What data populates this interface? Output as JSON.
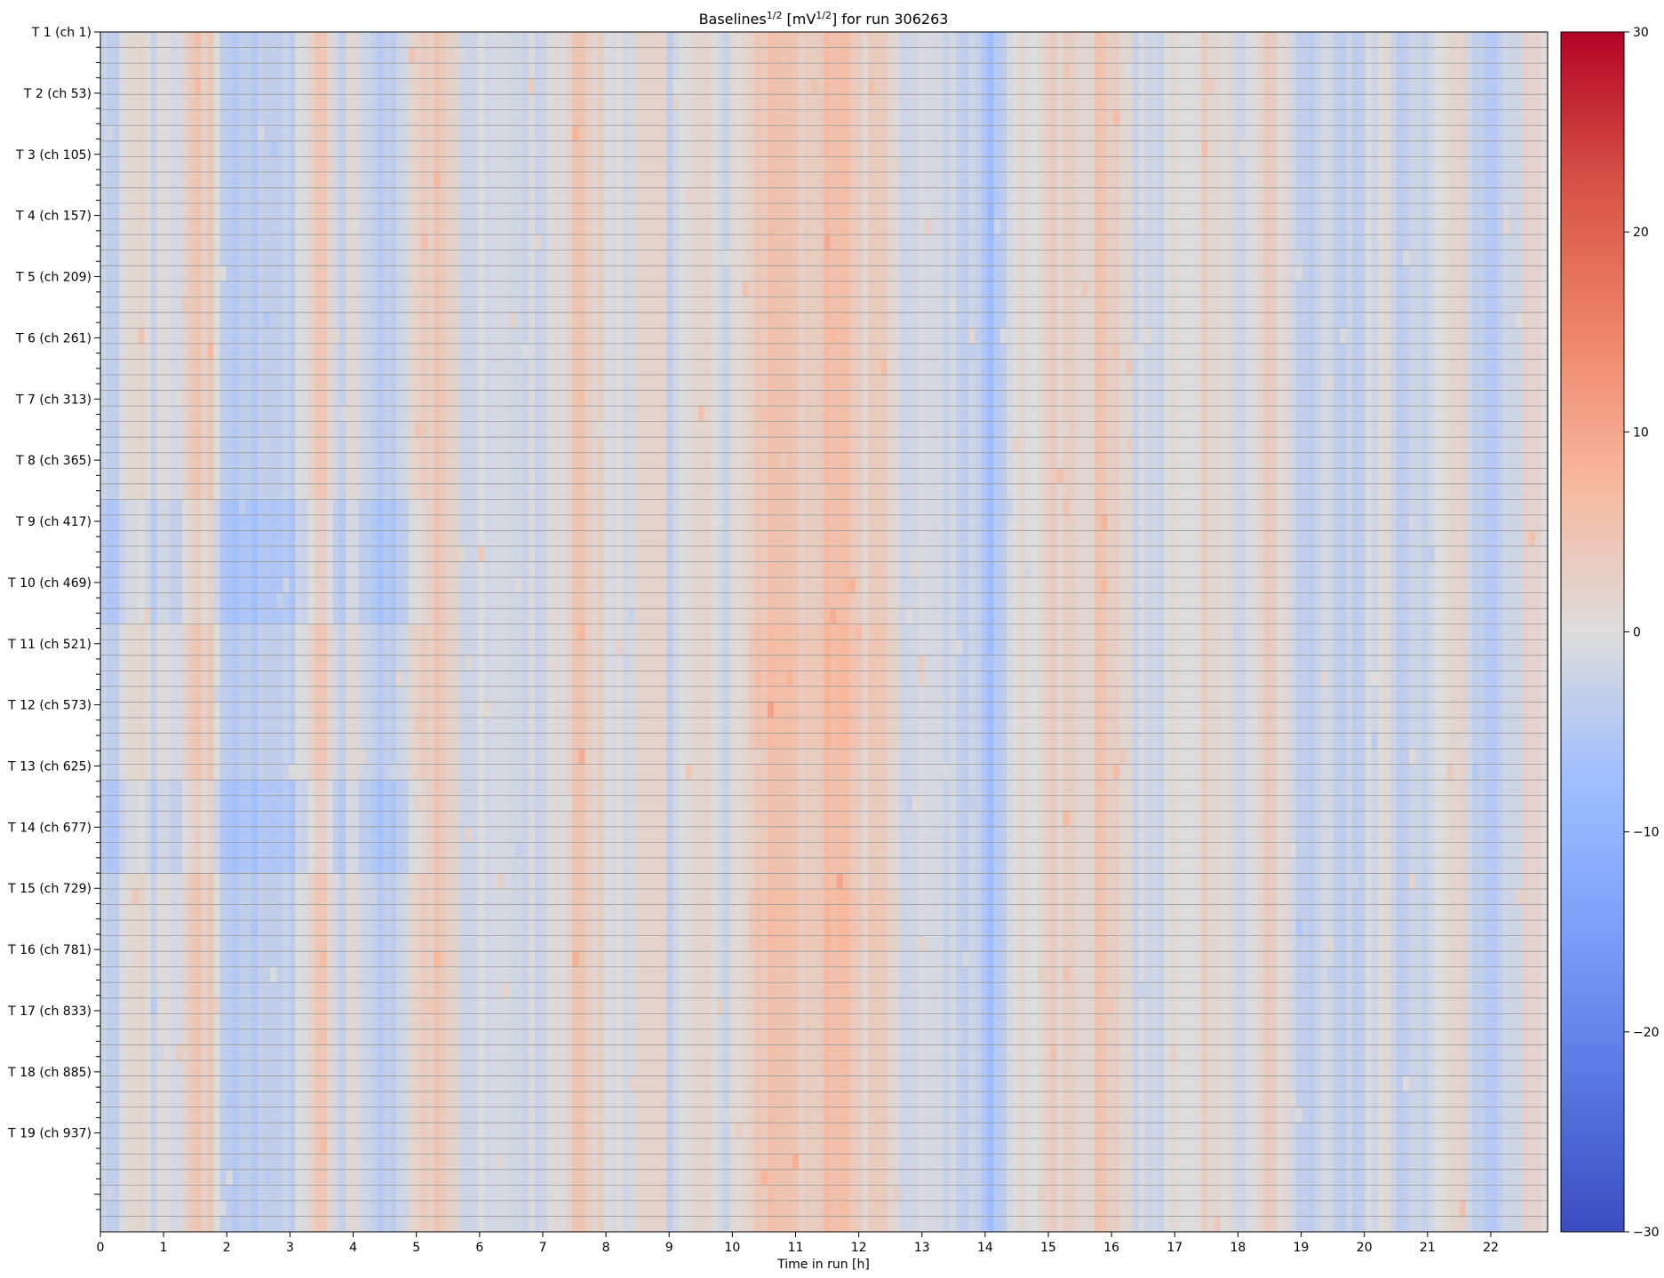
{
  "chart_data": {
    "type": "heatmap",
    "title": {
      "base1": "Baselines",
      "sup1": "1/2",
      "mid": " [mV",
      "sup2": "1/2",
      "end": "] for run 306263"
    },
    "xlabel": "Time in run [h]",
    "ylabel": "",
    "xlim": [
      0,
      22.9
    ],
    "x_ticks": [
      0,
      1,
      2,
      3,
      4,
      5,
      6,
      7,
      8,
      9,
      10,
      11,
      12,
      13,
      14,
      15,
      16,
      17,
      18,
      19,
      20,
      21,
      22
    ],
    "x_tick_labels": [
      "0",
      "1",
      "2",
      "3",
      "4",
      "5",
      "6",
      "7",
      "8",
      "9",
      "10",
      "11",
      "12",
      "13",
      "14",
      "15",
      "16",
      "17",
      "18",
      "19",
      "20",
      "21",
      "22"
    ],
    "y_tick_labels": [
      "T 1 (ch 1)",
      "T 2 (ch 53)",
      "T 3 (ch 105)",
      "T 4 (ch 157)",
      "T 5 (ch 209)",
      "T 6 (ch 261)",
      "T 7 (ch 313)",
      "T 8 (ch 365)",
      "T 9 (ch 417)",
      "T 10 (ch 469)",
      "T 11 (ch 521)",
      "T 12 (ch 573)",
      "T 13 (ch 625)",
      "T 14 (ch 677)",
      "T 15 (ch 729)",
      "T 16 (ch 781)",
      "T 17 (ch 833)",
      "T 18 (ch 885)",
      "T 19 (ch 937)"
    ],
    "channels_per_label": 52,
    "row_groups": 77,
    "n_time_bins": 230,
    "colorbar": {
      "min": -30,
      "max": 30,
      "ticks": [
        30,
        20,
        10,
        0,
        -10,
        -20,
        -30
      ],
      "tick_labels": [
        "30",
        "20",
        "10",
        "0",
        "−10",
        "−20",
        "−30"
      ],
      "colormap": "coolwarm"
    },
    "time_pattern": [
      [
        0.0,
        -3
      ],
      [
        0.2,
        -3
      ],
      [
        0.5,
        1
      ],
      [
        0.6,
        4
      ],
      [
        0.7,
        0
      ],
      [
        0.9,
        -2
      ],
      [
        1.0,
        2
      ],
      [
        1.2,
        -1
      ],
      [
        1.5,
        5
      ],
      [
        1.8,
        3
      ],
      [
        1.9,
        -3
      ],
      [
        2.2,
        -5
      ],
      [
        2.6,
        -3
      ],
      [
        3.0,
        -4
      ],
      [
        3.3,
        2
      ],
      [
        3.5,
        4
      ],
      [
        3.7,
        1
      ],
      [
        3.8,
        -3
      ],
      [
        4.0,
        3
      ],
      [
        4.2,
        -3
      ],
      [
        4.6,
        -4
      ],
      [
        5.0,
        2
      ],
      [
        5.4,
        4
      ],
      [
        5.6,
        3
      ],
      [
        5.7,
        -1
      ],
      [
        6.0,
        -1
      ],
      [
        6.5,
        -2
      ],
      [
        7.0,
        -1
      ],
      [
        7.4,
        0
      ],
      [
        7.6,
        6
      ],
      [
        7.8,
        3
      ],
      [
        8.0,
        1
      ],
      [
        8.4,
        -1
      ],
      [
        8.6,
        3
      ],
      [
        8.9,
        1
      ],
      [
        9.0,
        -3
      ],
      [
        9.3,
        0
      ],
      [
        9.6,
        2
      ],
      [
        9.9,
        -1
      ],
      [
        10.2,
        1
      ],
      [
        10.5,
        5
      ],
      [
        11.0,
        4
      ],
      [
        11.3,
        2
      ],
      [
        11.5,
        6
      ],
      [
        11.8,
        5
      ],
      [
        12.0,
        2
      ],
      [
        12.4,
        3
      ],
      [
        12.7,
        -1
      ],
      [
        13.0,
        -2
      ],
      [
        13.5,
        -2
      ],
      [
        13.9,
        -4
      ],
      [
        14.1,
        -7
      ],
      [
        14.3,
        -3
      ],
      [
        14.6,
        0
      ],
      [
        15.0,
        2
      ],
      [
        15.3,
        3
      ],
      [
        15.6,
        1
      ],
      [
        15.8,
        4
      ],
      [
        16.1,
        3
      ],
      [
        16.4,
        -2
      ],
      [
        16.8,
        -3
      ],
      [
        17.0,
        1
      ],
      [
        17.5,
        2
      ],
      [
        17.8,
        1
      ],
      [
        18.0,
        -2
      ],
      [
        18.4,
        3
      ],
      [
        18.8,
        1
      ],
      [
        19.0,
        -3
      ],
      [
        19.4,
        -2
      ],
      [
        19.7,
        -4
      ],
      [
        20.0,
        -2
      ],
      [
        20.4,
        0
      ],
      [
        20.6,
        -3
      ],
      [
        21.0,
        -3
      ],
      [
        21.2,
        1
      ],
      [
        21.5,
        3
      ],
      [
        21.7,
        -2
      ],
      [
        22.0,
        -4
      ],
      [
        22.4,
        -2
      ],
      [
        22.6,
        3
      ],
      [
        22.9,
        0
      ]
    ],
    "row_offsets": [
      {
        "from": 30,
        "to": 37,
        "shift": -2,
        "until_h": 5.2
      },
      {
        "from": 48,
        "to": 53,
        "shift": -2,
        "until_h": 5.2
      },
      {
        "from": 38,
        "to": 45,
        "shift": 1,
        "from_h": 10.3,
        "until_h": 12.6
      },
      {
        "from": 55,
        "to": 58,
        "shift": 1,
        "from_h": 10.3,
        "until_h": 12.6
      }
    ]
  }
}
